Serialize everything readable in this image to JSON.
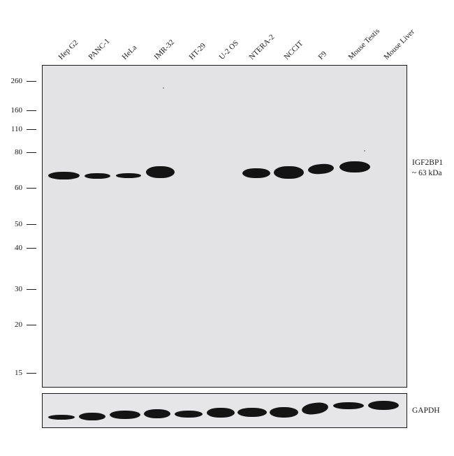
{
  "lanes": [
    "Hep G2",
    "PANC-1",
    "HeLa",
    "IMR-32",
    "HT-29",
    "U-2 OS",
    "NTERA-2",
    "NCCIT",
    "F9",
    "Mouse Testis",
    "Mouse Liver"
  ],
  "markers": [
    "260",
    "160",
    "110",
    "80",
    "60",
    "50",
    "40",
    "30",
    "20",
    "15"
  ],
  "target": {
    "name": "IGF2BP1",
    "size": "~ 63 kDa"
  },
  "loading_control": "GAPDH",
  "colors": {
    "blot_background": "#e3e3e5",
    "band": "#141414",
    "frame": "#1a1a1a"
  }
}
